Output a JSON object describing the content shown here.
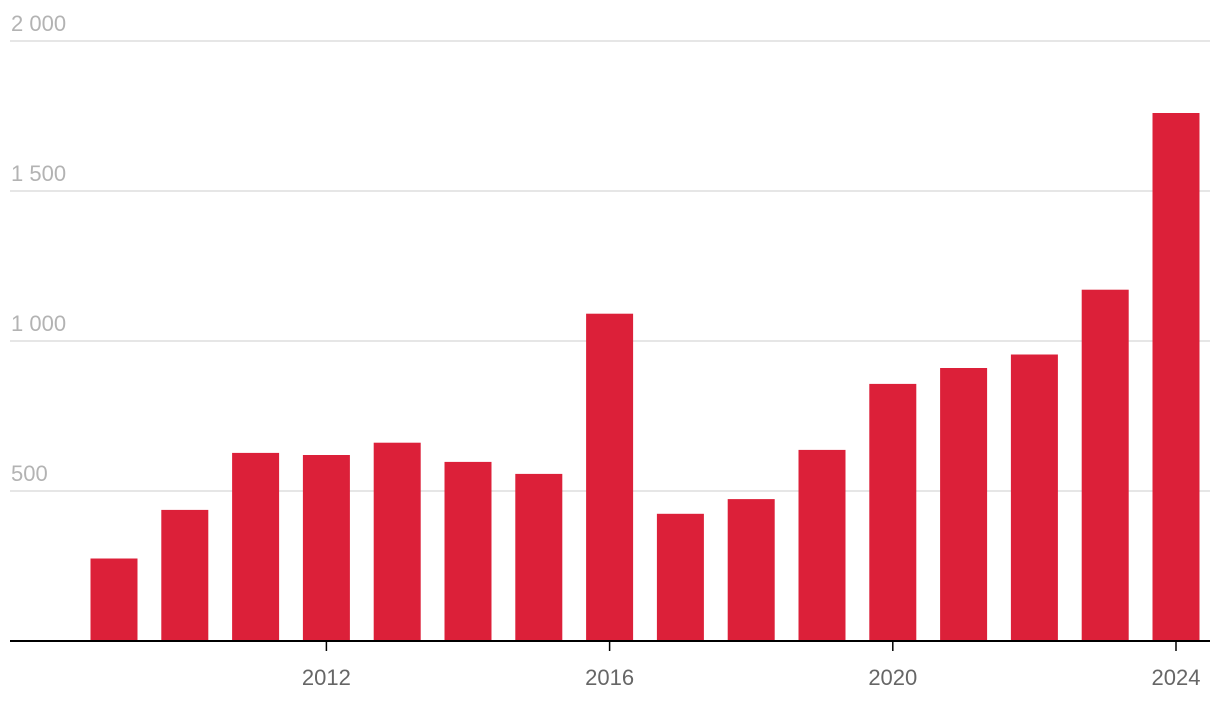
{
  "chart_data": {
    "type": "bar",
    "title": "",
    "xlabel": "",
    "ylabel": "",
    "categories": [
      "2009",
      "2010",
      "2011",
      "2012",
      "2013",
      "2014",
      "2015",
      "2016",
      "2017",
      "2018",
      "2019",
      "2020",
      "2021",
      "2022",
      "2023",
      "2024"
    ],
    "values": [
      275,
      437,
      627,
      620,
      661,
      597,
      557,
      1091,
      424,
      473,
      637,
      857,
      910,
      955,
      1171,
      1760
    ],
    "ylim": [
      0,
      2000
    ],
    "y_ticks": [
      500,
      1000,
      1500,
      2000
    ],
    "y_tick_labels": [
      "500",
      "1 000",
      "1 500",
      "2 000"
    ],
    "x_ticks": [
      "2012",
      "2016",
      "2020",
      "2024"
    ],
    "grid": true,
    "bar_color": "#dc2039",
    "gridline_color": "#dddddd",
    "axis_color": "#000000"
  }
}
